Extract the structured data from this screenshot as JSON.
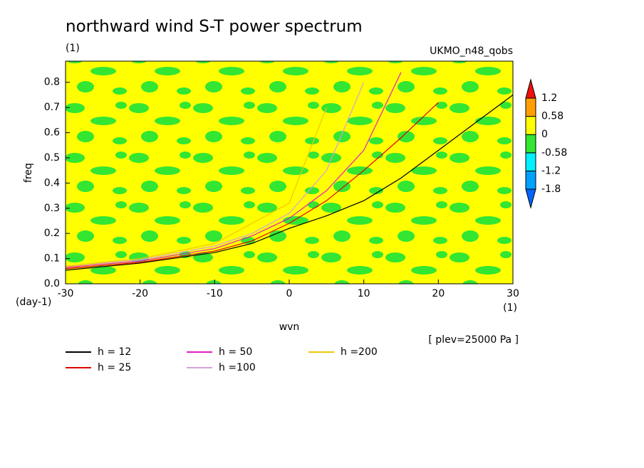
{
  "chart_data": {
    "type": "line",
    "title": "northward wind S-T power spectrum",
    "subtitle": "(1)",
    "model_label": "UKMO_n48_qobs",
    "xlabel": "wvn",
    "ylabel": "freq",
    "x_unit": "(1)",
    "y_unit": "(day-1)",
    "annotation": "[ plev=25000 Pa ]",
    "xlim": [
      -30,
      30
    ],
    "ylim": [
      0,
      0.884
    ],
    "xticks": [
      -30,
      -20,
      -10,
      0,
      10,
      20,
      30
    ],
    "yticks": [
      {
        "value": 0,
        "label": "0.0"
      },
      0.1,
      0.2,
      0.3,
      0.4,
      0.5,
      0.6,
      0.7,
      0.8
    ],
    "x": [
      -30,
      -20,
      -10,
      -5,
      0,
      5,
      10,
      15,
      20,
      25,
      30
    ],
    "series": [
      {
        "name": "h = 12",
        "color": "#000000",
        "values": [
          0.054,
          0.082,
          0.124,
          0.16,
          0.22,
          0.27,
          0.33,
          0.42,
          0.53,
          0.64,
          0.75
        ]
      },
      {
        "name": "h = 25",
        "color": "#e00000",
        "values": [
          0.06,
          0.085,
          0.13,
          0.17,
          0.24,
          0.33,
          0.45,
          0.58,
          0.72,
          null,
          null
        ]
      },
      {
        "name": "h = 50",
        "color": "#e020c0",
        "values": [
          0.065,
          0.09,
          0.14,
          0.19,
          0.26,
          0.37,
          0.53,
          0.84,
          null,
          null,
          null
        ]
      },
      {
        "name": "h =100",
        "color": "#d8a0d8",
        "values": [
          0.07,
          0.095,
          0.15,
          0.2,
          0.28,
          0.45,
          0.8,
          null,
          null,
          null,
          null
        ]
      },
      {
        "name": "h =200",
        "color": "#f0c800",
        "values": [
          0.07,
          0.1,
          0.16,
          0.24,
          0.32,
          0.7,
          null,
          null,
          null,
          null,
          null
        ]
      }
    ],
    "colorbar": {
      "levels": [
        -1.8,
        -1.2,
        -0.58,
        0,
        0.58,
        1.2
      ],
      "colors": [
        "#0064ff",
        "#00a0ff",
        "#00f0ff",
        "#32e632",
        "#ffff00",
        "#ffa000",
        "#f01010"
      ]
    }
  }
}
